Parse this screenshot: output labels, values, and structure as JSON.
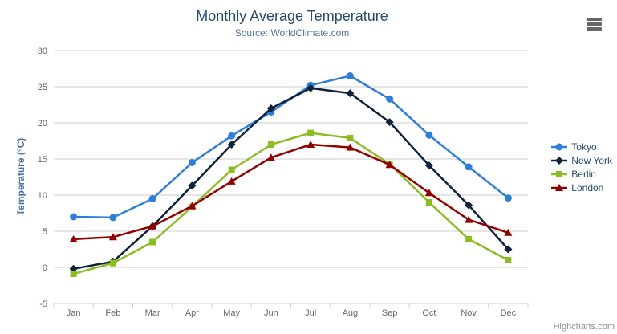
{
  "header": {
    "title": "Monthly Average Temperature",
    "subtitle": "Source: WorldClimate.com"
  },
  "credits": "Highcharts.com",
  "colors": {
    "title": "#274b6d",
    "subtitle": "#4d759e",
    "axis_labels": "#666666",
    "grid": "#cccccc",
    "axis_line": "#c0d0e0",
    "legend_text": "#274b6d",
    "credits": "#909090",
    "menu_icon": "#666666"
  },
  "chart_data": {
    "type": "line",
    "title": "Monthly Average Temperature",
    "subtitle": "Source: WorldClimate.com",
    "xlabel": "",
    "ylabel": "Temperature (°C)",
    "ylim": [
      -5,
      30
    ],
    "y_tick_step": 5,
    "y_tick_labels": [
      "-5",
      "0",
      "5",
      "10",
      "15",
      "20",
      "25",
      "30"
    ],
    "grid": true,
    "legend_position": "right",
    "categories": [
      "Jan",
      "Feb",
      "Mar",
      "Apr",
      "May",
      "Jun",
      "Jul",
      "Aug",
      "Sep",
      "Oct",
      "Nov",
      "Dec"
    ],
    "series": [
      {
        "name": "Tokyo",
        "color": "#2f7ed8",
        "marker": "circle",
        "values": [
          7.0,
          6.9,
          9.5,
          14.5,
          18.2,
          21.5,
          25.2,
          26.5,
          23.3,
          18.3,
          13.9,
          9.6
        ]
      },
      {
        "name": "New York",
        "color": "#0d233a",
        "marker": "diamond",
        "values": [
          -0.2,
          0.8,
          5.7,
          11.3,
          17.0,
          22.0,
          24.8,
          24.1,
          20.1,
          14.1,
          8.6,
          2.5
        ]
      },
      {
        "name": "Berlin",
        "color": "#8bbc21",
        "marker": "square",
        "values": [
          -0.9,
          0.6,
          3.5,
          8.4,
          13.5,
          17.0,
          18.6,
          17.9,
          14.3,
          9.0,
          3.9,
          1.0
        ]
      },
      {
        "name": "London",
        "color": "#910000",
        "marker": "triangle",
        "values": [
          3.9,
          4.2,
          5.7,
          8.5,
          11.9,
          15.2,
          17.0,
          16.6,
          14.2,
          10.3,
          6.6,
          4.8
        ]
      }
    ]
  }
}
